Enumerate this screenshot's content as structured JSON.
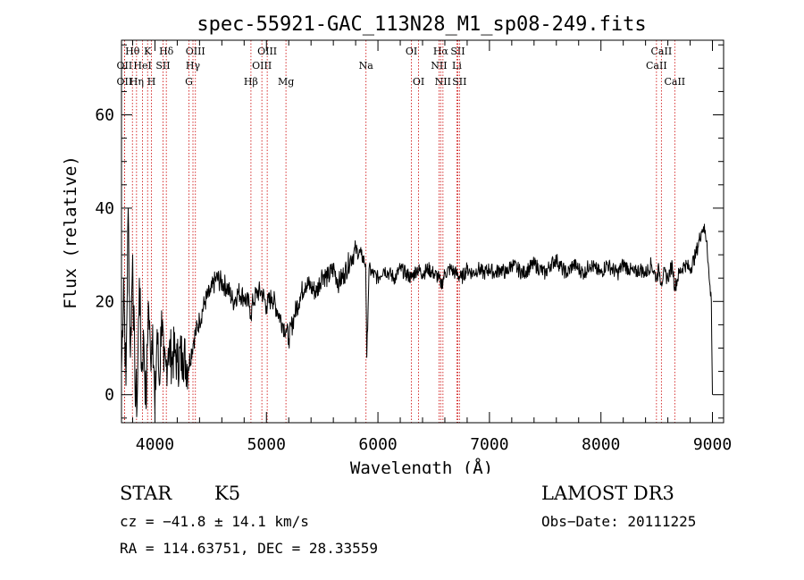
{
  "chart_data": {
    "type": "line",
    "title": "spec-55921-GAC_113N28_M1_sp08-249.fits",
    "xlabel": "Wavelength (Å)",
    "ylabel": "Flux (relative)",
    "xlim": [
      3700,
      9100
    ],
    "ylim": [
      -6,
      76
    ],
    "x_ticks": [
      4000,
      5000,
      6000,
      7000,
      8000,
      9000
    ],
    "y_ticks": [
      0,
      20,
      40,
      60
    ],
    "x_tick_labels": [
      "4000",
      "5000",
      "6000",
      "7000",
      "8000",
      "9000"
    ],
    "y_tick_labels": [
      "0",
      "20",
      "40",
      "60"
    ],
    "series": [
      {
        "name": "flux",
        "x": [
          3700,
          3720,
          3740,
          3760,
          3780,
          3800,
          3820,
          3840,
          3860,
          3880,
          3900,
          3920,
          3940,
          3960,
          3980,
          4000,
          4020,
          4040,
          4060,
          4080,
          4100,
          4120,
          4150,
          4180,
          4200,
          4250,
          4300,
          4350,
          4400,
          4450,
          4500,
          4550,
          4600,
          4650,
          4700,
          4750,
          4800,
          4850,
          4861,
          4880,
          4920,
          4960,
          5000,
          5050,
          5100,
          5150,
          5175,
          5200,
          5250,
          5300,
          5350,
          5400,
          5450,
          5500,
          5550,
          5600,
          5650,
          5700,
          5750,
          5800,
          5850,
          5890,
          5900,
          5920,
          5950,
          6000,
          6050,
          6100,
          6150,
          6200,
          6250,
          6300,
          6350,
          6400,
          6450,
          6500,
          6550,
          6563,
          6600,
          6650,
          6700,
          6750,
          6800,
          6850,
          6900,
          6950,
          7000,
          7050,
          7100,
          7150,
          7200,
          7250,
          7300,
          7350,
          7400,
          7450,
          7500,
          7550,
          7600,
          7650,
          7700,
          7750,
          7800,
          7850,
          7900,
          7950,
          8000,
          8050,
          8100,
          8150,
          8200,
          8250,
          8300,
          8350,
          8400,
          8450,
          8498,
          8520,
          8542,
          8560,
          8600,
          8640,
          8662,
          8700,
          8750,
          8800,
          8850,
          8900,
          8920,
          8950,
          8970,
          8990,
          9000
        ],
        "y": [
          5,
          25,
          2,
          40,
          8,
          30,
          3,
          -2,
          25,
          5,
          12,
          -3,
          20,
          8,
          15,
          -4,
          14,
          2,
          18,
          5,
          6,
          10,
          8,
          9,
          7,
          9,
          6,
          12,
          16,
          20,
          22,
          25,
          24,
          23,
          20,
          22,
          21,
          19,
          17,
          20,
          22,
          22,
          19,
          21,
          18,
          15,
          14,
          12,
          17,
          21,
          24,
          23,
          22,
          26,
          25,
          27,
          24,
          26,
          29,
          31,
          30,
          28,
          8,
          27,
          26,
          25,
          27,
          26,
          25,
          27,
          26,
          25,
          27,
          26,
          27,
          26,
          25,
          23,
          26,
          27,
          26,
          25,
          27,
          26,
          27,
          26,
          27,
          26,
          27,
          26,
          28,
          27,
          26,
          27,
          28,
          27,
          26,
          28,
          29,
          27,
          26,
          28,
          27,
          26,
          28,
          27,
          26,
          28,
          27,
          26,
          28,
          27,
          26,
          27,
          26,
          28,
          25,
          27,
          24,
          26,
          25,
          28,
          23,
          26,
          28,
          27,
          30,
          35,
          36,
          33,
          25,
          20,
          0
        ]
      }
    ],
    "line_marks": [
      {
        "label": "Hθ",
        "wavelength": 3798,
        "row": 1
      },
      {
        "label": "K",
        "wavelength": 3934,
        "row": 1
      },
      {
        "label": "Hδ",
        "wavelength": 4102,
        "row": 1
      },
      {
        "label": "OII",
        "wavelength": 3727,
        "row": 2
      },
      {
        "label": "HeI",
        "wavelength": 3889,
        "row": 2
      },
      {
        "label": "SII",
        "wavelength": 4072,
        "row": 2
      },
      {
        "label": "OII",
        "wavelength": 3727,
        "row": 3
      },
      {
        "label": "Hη",
        "wavelength": 3835,
        "row": 3
      },
      {
        "label": "H",
        "wavelength": 3969,
        "row": 3
      },
      {
        "label": "OIII",
        "wavelength": 4363,
        "row": 1
      },
      {
        "label": "Hγ",
        "wavelength": 4341,
        "row": 2
      },
      {
        "label": "G",
        "wavelength": 4305,
        "row": 3
      },
      {
        "label": "OIII",
        "wavelength": 5007,
        "row": 1
      },
      {
        "label": "OIII",
        "wavelength": 4959,
        "row": 2
      },
      {
        "label": "Hβ",
        "wavelength": 4861,
        "row": 3
      },
      {
        "label": "Mg",
        "wavelength": 5175,
        "row": 3
      },
      {
        "label": "Na",
        "wavelength": 5893,
        "row": 2
      },
      {
        "label": "OI",
        "wavelength": 6300,
        "row": 1
      },
      {
        "label": "OI",
        "wavelength": 6364,
        "row": 3
      },
      {
        "label": "Hα",
        "wavelength": 6563,
        "row": 1
      },
      {
        "label": "SII",
        "wavelength": 6716,
        "row": 1
      },
      {
        "label": "NII",
        "wavelength": 6548,
        "row": 2
      },
      {
        "label": "Li",
        "wavelength": 6708,
        "row": 2
      },
      {
        "label": "NII",
        "wavelength": 6583,
        "row": 3
      },
      {
        "label": "SII",
        "wavelength": 6731,
        "row": 3
      },
      {
        "label": "CaII",
        "wavelength": 8542,
        "row": 1
      },
      {
        "label": "CaII",
        "wavelength": 8498,
        "row": 2
      },
      {
        "label": "CaII",
        "wavelength": 8662,
        "row": 3
      }
    ]
  },
  "info": {
    "object_class": "STAR",
    "subclass": "K5",
    "survey": "LAMOST DR3",
    "redshift": "cz = −41.8 ± 14.1 km/s",
    "obs_date": "Obs−Date: 20111225",
    "coords": "RA = 114.63751, DEC =  28.33559"
  },
  "colors": {
    "line_marker": "#cc0000",
    "spectrum": "#000000",
    "axes": "#000000"
  }
}
